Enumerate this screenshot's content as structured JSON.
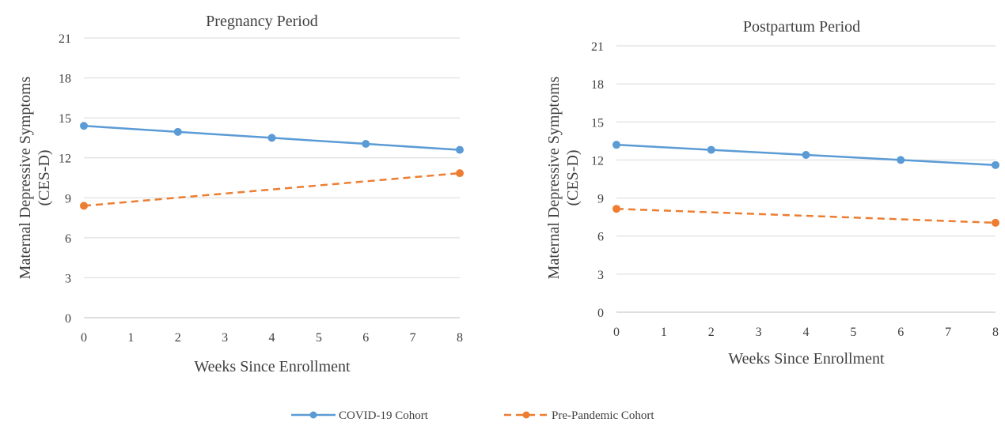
{
  "chart_data": [
    {
      "type": "line",
      "title": "Pregnancy Period",
      "xlabel": "Weeks Since Enrollment",
      "ylabel": "Maternal  Depressive Symptoms (CES-D)",
      "xlim": [
        0,
        8
      ],
      "ylim": [
        0,
        21
      ],
      "x_ticks": [
        0,
        1,
        2,
        3,
        4,
        5,
        6,
        7,
        8
      ],
      "y_ticks": [
        0,
        3,
        6,
        9,
        12,
        15,
        18,
        21
      ],
      "grid": "horizontal",
      "series": [
        {
          "name": "COVID-19 Cohort",
          "color": "#5b9bd5",
          "dash": "solid",
          "points": [
            [
              0,
              14.4
            ],
            [
              2,
              13.95
            ],
            [
              4,
              13.5
            ],
            [
              6,
              13.05
            ],
            [
              8,
              12.6
            ]
          ]
        },
        {
          "name": "Pre-Pandemic Cohort",
          "color": "#ed7d31",
          "dash": "dashed",
          "points": [
            [
              0,
              8.4
            ],
            [
              8,
              10.85
            ]
          ]
        }
      ]
    },
    {
      "type": "line",
      "title": "Postpartum Period",
      "xlabel": "Weeks Since Enrollment",
      "ylabel": "Maternal  Depressive Symptoms (CES-D)",
      "xlim": [
        0,
        8
      ],
      "ylim": [
        0,
        21
      ],
      "x_ticks": [
        0,
        1,
        2,
        3,
        4,
        5,
        6,
        7,
        8
      ],
      "y_ticks": [
        0,
        3,
        6,
        9,
        12,
        15,
        18,
        21
      ],
      "grid": "horizontal",
      "series": [
        {
          "name": "COVID-19 Cohort",
          "color": "#5b9bd5",
          "dash": "solid",
          "points": [
            [
              0,
              13.2
            ],
            [
              2,
              12.8
            ],
            [
              4,
              12.4
            ],
            [
              6,
              12.0
            ],
            [
              8,
              11.6
            ]
          ]
        },
        {
          "name": "Pre-Pandemic Cohort",
          "color": "#ed7d31",
          "dash": "dashed",
          "points": [
            [
              0,
              8.15
            ],
            [
              8,
              7.05
            ]
          ]
        }
      ]
    }
  ],
  "legend": {
    "placement": "bottom-center",
    "items": [
      {
        "label": "COVID-19 Cohort",
        "color": "#5b9bd5",
        "dash": "solid"
      },
      {
        "label": "Pre-Pandemic Cohort",
        "color": "#ed7d31",
        "dash": "dashed"
      }
    ]
  }
}
